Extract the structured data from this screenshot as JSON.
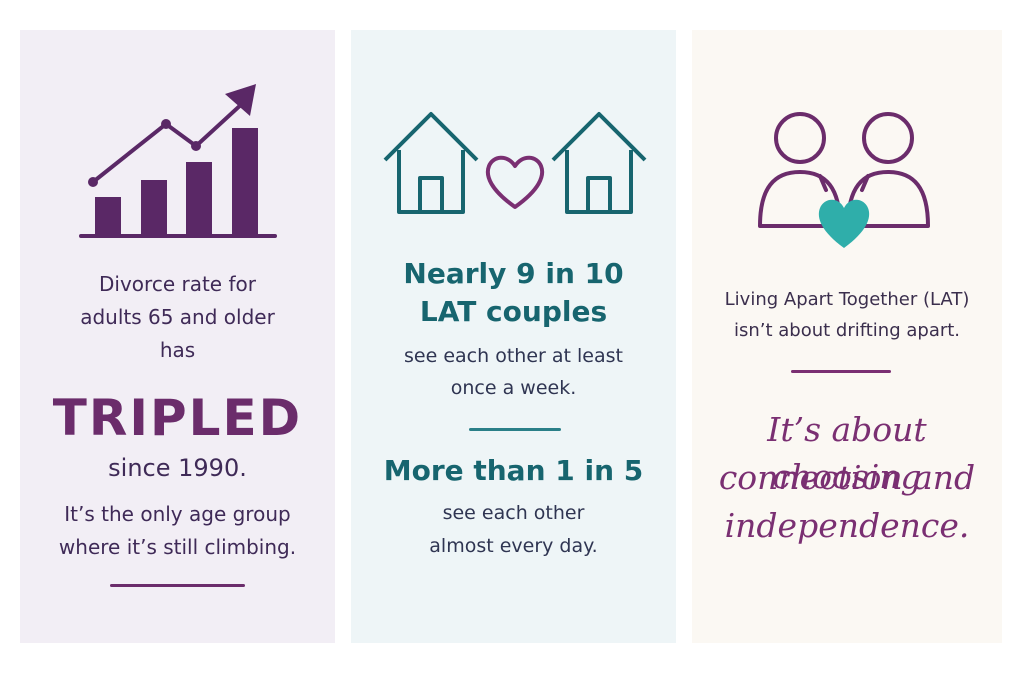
{
  "panel1": {
    "line1": "Divorce rate for",
    "line2": "adults 65 and older",
    "line3": "has",
    "highlight": "TRIPLED",
    "since": "since 1990.",
    "note1": "It’s the only age group",
    "note2": "where it’s still climbing.",
    "icon": "rising-bar-chart-icon"
  },
  "panel2": {
    "headline1": "Nearly 9 in 10",
    "headline2": "LAT couples",
    "body1": "see each other at least",
    "body2": "once a week.",
    "headline3": "More than 1 in 5",
    "body3": "see each other",
    "body4": "almost every day.",
    "icon": "two-houses-heart-icon"
  },
  "panel3": {
    "line1": "Living Apart Together (LAT)",
    "line2": "isn’t about drifting apart.",
    "script1": "It’s about choosing",
    "script2": "connection and",
    "script3": "independence.",
    "icon": "couple-heart-icon"
  },
  "colors": {
    "purple": "#6b2c6b",
    "teal": "#17656f",
    "panel1_bg": "#f2eef5",
    "panel2_bg": "#eef5f7",
    "panel3_bg": "#fbf8f3"
  }
}
